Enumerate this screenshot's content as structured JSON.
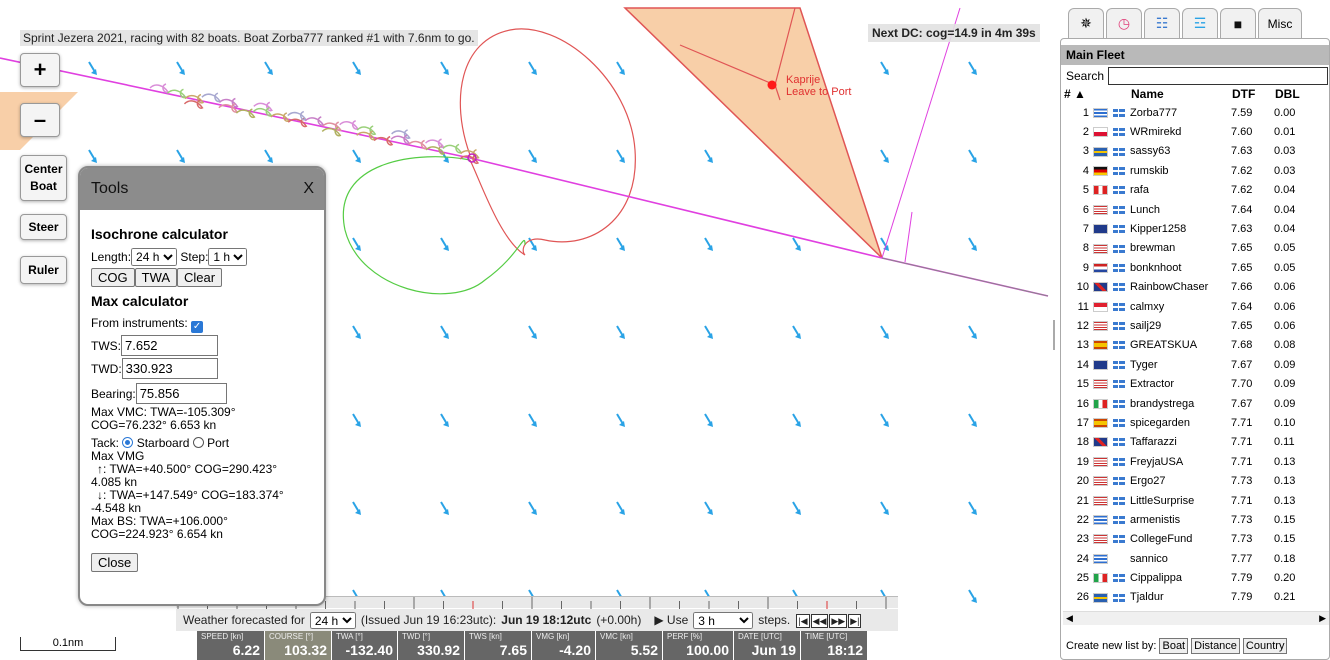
{
  "map": {
    "status": "Sprint Jezera 2021, racing with 82 boats. Boat Zorba777 ranked #1 with 7.6nm to go.",
    "next_dc": "Next DC: cog=14.9 in 4m 39s",
    "mark_name": "Kaprije",
    "mark_note": "Leave to Port",
    "scale_label": "0.1nm",
    "buttons": {
      "zoom_in": "+",
      "zoom_out": "–",
      "center_boat": "Center Boat",
      "steer": "Steer",
      "ruler": "Ruler"
    }
  },
  "tools": {
    "title": "Tools",
    "close_x": "X",
    "iso_title": "Isochrone calculator",
    "length_label": "Length:",
    "length_value": "24 h",
    "step_label": "Step:",
    "step_value": "1 h",
    "btn_cog": "COG",
    "btn_twa": "TWA",
    "btn_clear": "Clear",
    "max_title": "Max calculator",
    "from_instruments": "From instruments:",
    "tws_label": "TWS:",
    "tws_value": "7.652",
    "twd_label": "TWD:",
    "twd_value": "330.923",
    "bearing_label": "Bearing:",
    "bearing_value": "75.856",
    "max_vmc_1": "Max VMC: TWA=-105.309°",
    "max_vmc_2": "COG=76.232° 6.653 kn",
    "tack_label": "Tack:",
    "starboard": "Starboard",
    "port": "Port",
    "max_vmg": "Max VMG",
    "vmg_up_1": "↑: TWA=+40.500° COG=290.423°",
    "vmg_up_2": "4.085 kn",
    "vmg_dn_1": "↓: TWA=+147.549° COG=183.374°",
    "vmg_dn_2": "-4.548 kn",
    "max_bs_1": "Max BS: TWA=+106.000°",
    "max_bs_2": "COG=224.923° 6.654 kn",
    "close_btn": "Close"
  },
  "weather": {
    "label": "Weather forecasted for",
    "hours": "24 h",
    "issued": "(Issued Jun 19 16:23utc):",
    "time": "Jun 19 18:12utc",
    "offset": "(+0.00h)",
    "use_label": "▶ Use",
    "use_value": "3 h",
    "steps": "steps.",
    "nav": [
      "|◀",
      "◀◀",
      "▶▶",
      "▶|"
    ]
  },
  "instruments": [
    {
      "label": "SPEED [kn]",
      "value": "6.22"
    },
    {
      "label": "COURSE [°]",
      "value": "103.32"
    },
    {
      "label": "TWA [°]",
      "value": "-132.40"
    },
    {
      "label": "TWD [°]",
      "value": "330.92"
    },
    {
      "label": "TWS [kn]",
      "value": "7.65"
    },
    {
      "label": "VMG [kn]",
      "value": "-4.20"
    },
    {
      "label": "VMC [kn]",
      "value": "5.52"
    },
    {
      "label": "PERF [%]",
      "value": "100.00"
    },
    {
      "label": "DATE [UTC]",
      "value": "Jun 19"
    },
    {
      "label": "TIME [UTC]",
      "value": "18:12"
    }
  ],
  "panel": {
    "tabs": [
      "✵",
      "◷",
      "☷",
      "☲",
      "■",
      "Misc"
    ],
    "fleet_title": "Main Fleet",
    "search_label": "Search",
    "columns": {
      "rank": "# ▲",
      "name": "Name",
      "dtf": "DTF",
      "dbl": "DBL"
    },
    "boats": [
      {
        "rank": "1",
        "flag": "gr",
        "name": "Zorba777",
        "dtf": "7.59",
        "dbl": "0.00"
      },
      {
        "rank": "2",
        "flag": "pl",
        "name": "WRmirekd",
        "dtf": "7.60",
        "dbl": "0.01"
      },
      {
        "rank": "3",
        "flag": "se",
        "name": "sassy63",
        "dtf": "7.63",
        "dbl": "0.03"
      },
      {
        "rank": "4",
        "flag": "de",
        "name": "rumskib",
        "dtf": "7.62",
        "dbl": "0.03"
      },
      {
        "rank": "5",
        "flag": "it2",
        "name": "rafa",
        "dtf": "7.62",
        "dbl": "0.04"
      },
      {
        "rank": "6",
        "flag": "us",
        "name": "Lunch",
        "dtf": "7.64",
        "dbl": "0.04"
      },
      {
        "rank": "7",
        "flag": "au",
        "name": "Kipper1258",
        "dtf": "7.63",
        "dbl": "0.04"
      },
      {
        "rank": "8",
        "flag": "us",
        "name": "brewman",
        "dtf": "7.65",
        "dbl": "0.05"
      },
      {
        "rank": "9",
        "flag": "nl",
        "name": "bonknhoot",
        "dtf": "7.65",
        "dbl": "0.05"
      },
      {
        "rank": "10",
        "flag": "gb",
        "name": "RainbowChaser",
        "dtf": "7.66",
        "dbl": "0.06"
      },
      {
        "rank": "11",
        "flag": "sg",
        "name": "calmxy",
        "dtf": "7.64",
        "dbl": "0.06"
      },
      {
        "rank": "12",
        "flag": "us",
        "name": "sailj29",
        "dtf": "7.65",
        "dbl": "0.06"
      },
      {
        "rank": "13",
        "flag": "es",
        "name": "GREATSKUA",
        "dtf": "7.68",
        "dbl": "0.08"
      },
      {
        "rank": "14",
        "flag": "au",
        "name": "Tyger",
        "dtf": "7.67",
        "dbl": "0.09"
      },
      {
        "rank": "15",
        "flag": "us",
        "name": "Extractor",
        "dtf": "7.70",
        "dbl": "0.09"
      },
      {
        "rank": "16",
        "flag": "it",
        "name": "brandystrega",
        "dtf": "7.67",
        "dbl": "0.09"
      },
      {
        "rank": "17",
        "flag": "es",
        "name": "spicegarden",
        "dtf": "7.71",
        "dbl": "0.10"
      },
      {
        "rank": "18",
        "flag": "gb",
        "name": "Taffarazzi",
        "dtf": "7.71",
        "dbl": "0.11"
      },
      {
        "rank": "19",
        "flag": "us",
        "name": "FreyjaUSA",
        "dtf": "7.71",
        "dbl": "0.13"
      },
      {
        "rank": "20",
        "flag": "us",
        "name": "Ergo27",
        "dtf": "7.73",
        "dbl": "0.13"
      },
      {
        "rank": "21",
        "flag": "us",
        "name": "LittleSurprise",
        "dtf": "7.71",
        "dbl": "0.13"
      },
      {
        "rank": "22",
        "flag": "gr",
        "name": "armenistis",
        "dtf": "7.73",
        "dbl": "0.15"
      },
      {
        "rank": "23",
        "flag": "us",
        "name": "CollegeFund",
        "dtf": "7.73",
        "dbl": "0.15"
      },
      {
        "rank": "24",
        "flag": "gr",
        "name": "sannico",
        "dtf": "7.77",
        "dbl": "0.18"
      },
      {
        "rank": "25",
        "flag": "it",
        "name": "Cippalippa",
        "dtf": "7.79",
        "dbl": "0.20"
      },
      {
        "rank": "26",
        "flag": "se",
        "name": "Tjaldur",
        "dtf": "7.79",
        "dbl": "0.21"
      }
    ],
    "new_list_label": "Create new list by:",
    "new_list_buttons": [
      "Boat",
      "Distance",
      "Country"
    ]
  },
  "colors": {
    "track": "#e040e0",
    "wind_arrow": "#2aa3e6",
    "mark_zone": "#f8cfa8",
    "isochrone_red": "#e05555",
    "isochrone_green": "#55cc44"
  }
}
